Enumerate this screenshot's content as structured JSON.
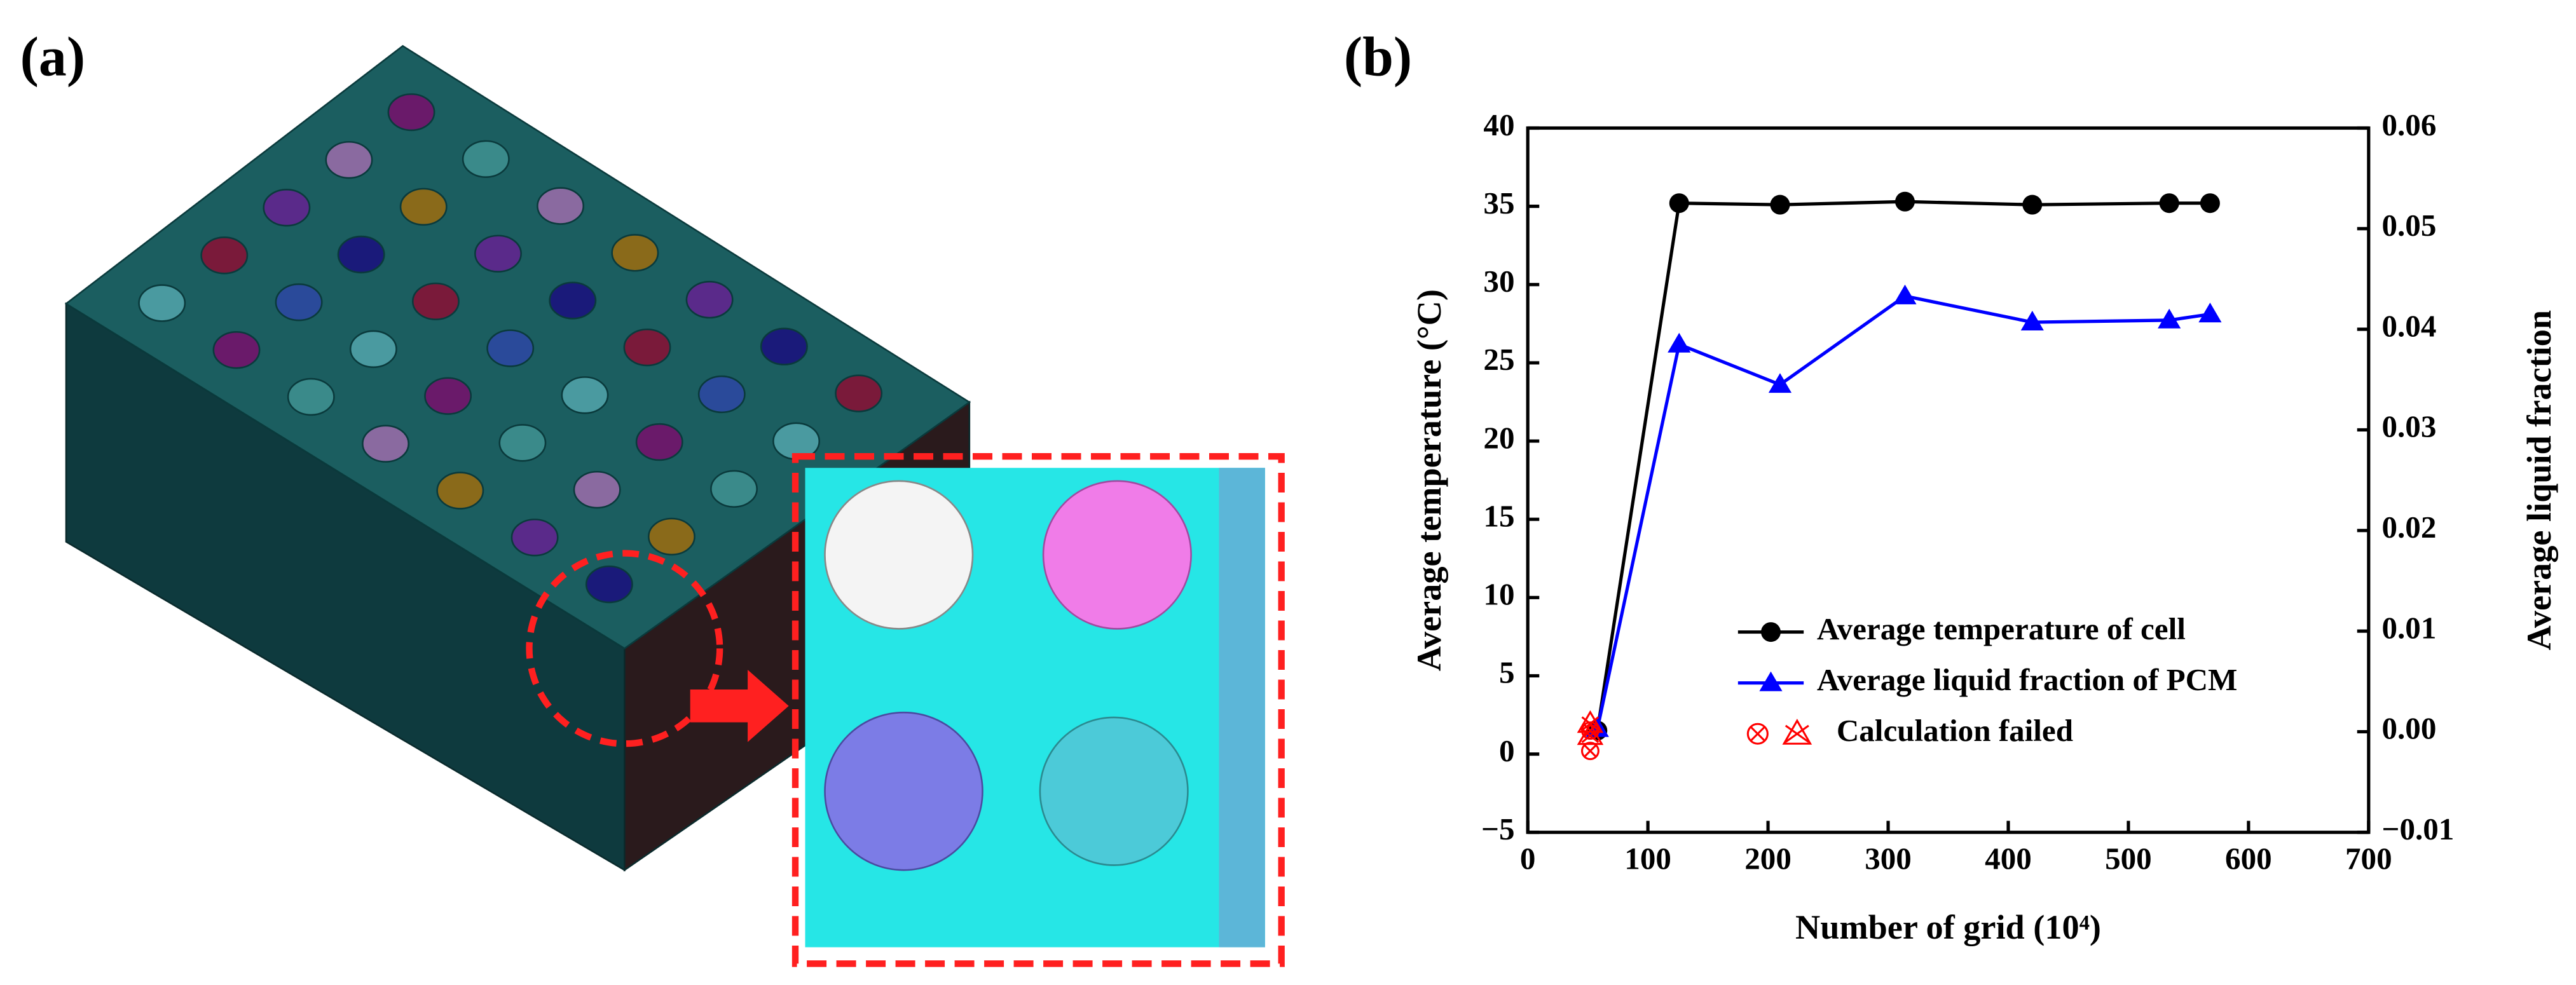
{
  "panel_labels": [
    "(a)",
    "(b)"
  ],
  "chart_data": {
    "type": "line",
    "xlabel": "Number of grid (10⁴)",
    "ylabel": "Average temperature (°C)",
    "y2label": "Average liquid fraction",
    "x": [
      58,
      126,
      210,
      314,
      420,
      534,
      568
    ],
    "series": [
      {
        "name": "Average temperature of cell",
        "color": "#000000",
        "marker": "circle",
        "values": [
          1.5,
          35.2,
          35.1,
          35.3,
          35.1,
          35.2,
          35.2
        ]
      },
      {
        "name": "Average liquid fraction of PCM",
        "color": "#0000ff",
        "marker": "triangle",
        "axis": "y2",
        "values": [
          0.0003,
          0.0385,
          0.0345,
          0.0433,
          0.0407,
          0.0409,
          0.0415
        ]
      }
    ],
    "failed": {
      "name": "Calculation failed",
      "color": "#ff0000",
      "temperature": {
        "x": [
          52,
          52
        ],
        "values": [
          1.5,
          0.2
        ]
      },
      "liquid_fraction": {
        "x": [
          52,
          52
        ],
        "values": [
          0.0008,
          -0.0004
        ]
      }
    },
    "xlim": [
      0,
      700
    ],
    "xticks": [
      0,
      100,
      200,
      300,
      400,
      500,
      600,
      700
    ],
    "ylim": [
      -5,
      40
    ],
    "yticks": [
      {
        "value": -5,
        "label": "−5"
      },
      0,
      5,
      10,
      15,
      20,
      25,
      30,
      35,
      40
    ],
    "y2lim": [
      -0.01,
      0.06
    ],
    "y2ticks": [
      {
        "value": -0.01,
        "label": "−0.01"
      },
      {
        "value": 0,
        "label": "0.00"
      },
      {
        "value": 0.01,
        "label": "0.01"
      },
      {
        "value": 0.02,
        "label": "0.02"
      },
      {
        "value": 0.03,
        "label": "0.03"
      },
      {
        "value": 0.04,
        "label": "0.04"
      },
      {
        "value": 0.05,
        "label": "0.05"
      },
      {
        "value": 0.06,
        "label": "0.06"
      }
    ],
    "grid": false,
    "legend": "lower right"
  }
}
